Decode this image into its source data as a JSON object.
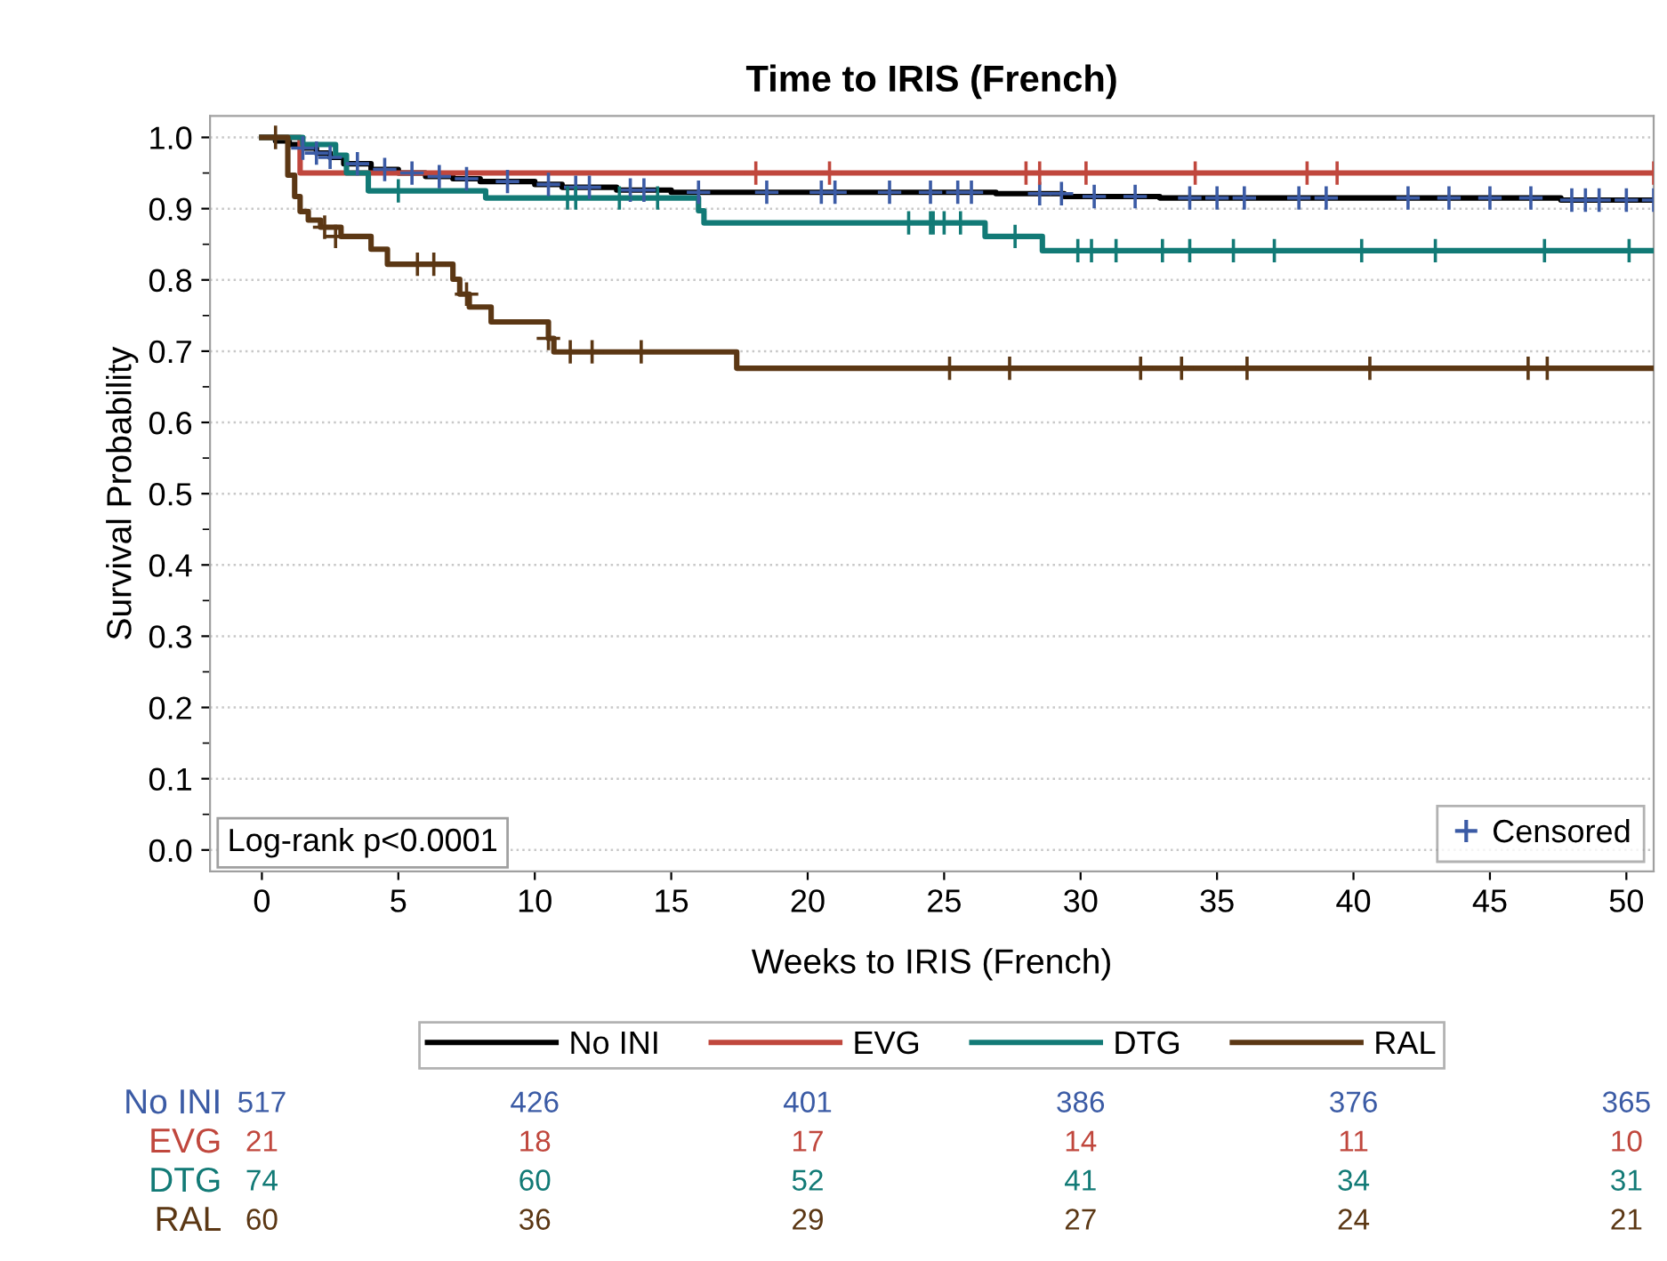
{
  "chart_data": {
    "type": "step",
    "title": "Time to IRIS (French)",
    "xlabel": "Weeks to IRIS (French)",
    "ylabel": "Survival Probability",
    "xlim": [
      -1.9,
      51
    ],
    "ylim": [
      -0.03,
      1.03
    ],
    "xticks": [
      0,
      5,
      10,
      15,
      20,
      25,
      30,
      35,
      40,
      45,
      50
    ],
    "yticks": [
      {
        "value": 0.0,
        "label": "0.0"
      },
      {
        "value": 0.05,
        "label": null
      },
      {
        "value": 0.1,
        "label": "0.1"
      },
      {
        "value": 0.15,
        "label": null
      },
      {
        "value": 0.2,
        "label": "0.2"
      },
      {
        "value": 0.25,
        "label": null
      },
      {
        "value": 0.3,
        "label": "0.3"
      },
      {
        "value": 0.35,
        "label": null
      },
      {
        "value": 0.4,
        "label": "0.4"
      },
      {
        "value": 0.45,
        "label": null
      },
      {
        "value": 0.5,
        "label": "0.5"
      },
      {
        "value": 0.55,
        "label": null
      },
      {
        "value": 0.6,
        "label": "0.6"
      },
      {
        "value": 0.65,
        "label": null
      },
      {
        "value": 0.7,
        "label": "0.7"
      },
      {
        "value": 0.75,
        "label": null
      },
      {
        "value": 0.8,
        "label": "0.8"
      },
      {
        "value": 0.85,
        "label": null
      },
      {
        "value": 0.9,
        "label": "0.9"
      },
      {
        "value": 0.95,
        "label": null
      },
      {
        "value": 1.0,
        "label": "1.0"
      }
    ],
    "grid": "y",
    "legend": "bottom",
    "series": [
      {
        "name": "No INI",
        "color": "#000000",
        "x": [
          0,
          0.5,
          1,
          1.5,
          2,
          2.5,
          3,
          4,
          5,
          6,
          7,
          8,
          10,
          11,
          13,
          15,
          26.9,
          29.4,
          32.9,
          47.6,
          51
        ],
        "values": [
          1,
          0.995,
          0.99,
          0.985,
          0.978,
          0.972,
          0.963,
          0.955,
          0.95,
          0.945,
          0.942,
          0.938,
          0.934,
          0.93,
          0.926,
          0.923,
          0.921,
          0.917,
          0.915,
          0.912,
          0.912
        ]
      },
      {
        "name": "EVG",
        "color": "#c0473d",
        "x": [
          0,
          1.4,
          51
        ],
        "values": [
          1,
          0.95,
          0.95
        ]
      },
      {
        "name": "DTG",
        "color": "#127a76",
        "x": [
          0,
          1.5,
          2.7,
          3.1,
          3.9,
          8.2,
          16.0,
          16.2,
          26.5,
          28.6,
          51
        ],
        "values": [
          1,
          0.99,
          0.975,
          0.95,
          0.925,
          0.915,
          0.897,
          0.88,
          0.861,
          0.841,
          0.841
        ]
      },
      {
        "name": "RAL",
        "color": "#5b3714",
        "x": [
          0,
          0.95,
          1.2,
          1.4,
          1.7,
          2.15,
          2.9,
          4.0,
          4.6,
          7.0,
          7.25,
          7.6,
          8.4,
          10.5,
          10.7,
          17.4,
          51
        ],
        "values": [
          1,
          0.947,
          0.917,
          0.896,
          0.884,
          0.874,
          0.861,
          0.843,
          0.822,
          0.801,
          0.78,
          0.762,
          0.741,
          0.718,
          0.699,
          0.676,
          0.676
        ]
      },
      {
        "name": "Censored",
        "type": "scatter",
        "marker": "cross",
        "color": "#3b5ba5",
        "x": [
          1.5,
          2,
          2.5,
          3.5,
          4.5,
          5.5,
          6.5,
          7.5,
          9,
          10.5,
          11.5,
          12,
          13.5,
          14,
          16,
          18.5,
          20.5,
          21,
          23,
          24.5,
          25.5,
          26,
          28.5,
          29.3,
          30.5,
          32,
          34,
          35,
          36,
          38,
          39,
          42,
          43.5,
          45,
          46.5,
          48,
          48.5,
          49,
          50,
          51,
          18.1,
          20.8,
          28.0,
          28.5,
          30.2,
          34.2,
          38.3,
          39.4,
          51,
          5.0,
          11.2,
          11.5,
          13.1,
          14.5,
          23.7,
          24.5,
          24.6,
          25.0,
          25.6,
          27.6,
          29.9,
          30.4,
          31.3,
          33.0,
          34.0,
          35.6,
          37.1,
          40.3,
          43.0,
          47.0,
          50.1,
          0.5,
          2.3,
          2.7,
          5.7,
          6.3,
          7.5,
          10.5,
          11.3,
          12.1,
          13.9,
          25.2,
          27.4,
          32.2,
          33.7,
          36.1,
          40.6,
          46.4,
          47.1
        ],
        "values": [
          0.985,
          0.978,
          0.972,
          0.963,
          0.955,
          0.95,
          0.945,
          0.942,
          0.938,
          0.934,
          0.93,
          0.93,
          0.926,
          0.926,
          0.923,
          0.923,
          0.923,
          0.923,
          0.923,
          0.923,
          0.923,
          0.923,
          0.921,
          0.921,
          0.917,
          0.917,
          0.915,
          0.915,
          0.915,
          0.915,
          0.915,
          0.915,
          0.915,
          0.915,
          0.915,
          0.912,
          0.912,
          0.912,
          0.912,
          0.912,
          0.95,
          0.95,
          0.95,
          0.95,
          0.95,
          0.95,
          0.95,
          0.95,
          0.95,
          0.925,
          0.915,
          0.915,
          0.915,
          0.915,
          0.88,
          0.88,
          0.88,
          0.88,
          0.88,
          0.861,
          0.841,
          0.841,
          0.841,
          0.841,
          0.841,
          0.841,
          0.841,
          0.841,
          0.841,
          0.841,
          0.841,
          1.0,
          0.874,
          0.861,
          0.822,
          0.822,
          0.78,
          0.718,
          0.699,
          0.699,
          0.699,
          0.676,
          0.676,
          0.676,
          0.676,
          0.676,
          0.676,
          0.676,
          0.676
        ],
        "colors": [
          "#3b5ba5",
          "#3b5ba5",
          "#3b5ba5",
          "#3b5ba5",
          "#3b5ba5",
          "#3b5ba5",
          "#3b5ba5",
          "#3b5ba5",
          "#3b5ba5",
          "#3b5ba5",
          "#3b5ba5",
          "#3b5ba5",
          "#3b5ba5",
          "#3b5ba5",
          "#3b5ba5",
          "#3b5ba5",
          "#3b5ba5",
          "#3b5ba5",
          "#3b5ba5",
          "#3b5ba5",
          "#3b5ba5",
          "#3b5ba5",
          "#3b5ba5",
          "#3b5ba5",
          "#3b5ba5",
          "#3b5ba5",
          "#3b5ba5",
          "#3b5ba5",
          "#3b5ba5",
          "#3b5ba5",
          "#3b5ba5",
          "#3b5ba5",
          "#3b5ba5",
          "#3b5ba5",
          "#3b5ba5",
          "#3b5ba5",
          "#3b5ba5",
          "#3b5ba5",
          "#3b5ba5",
          "#3b5ba5",
          "#c0473d",
          "#c0473d",
          "#c0473d",
          "#c0473d",
          "#c0473d",
          "#c0473d",
          "#c0473d",
          "#c0473d",
          "#c0473d",
          "#127a76",
          "#127a76",
          "#127a76",
          "#127a76",
          "#127a76",
          "#127a76",
          "#127a76",
          "#127a76",
          "#127a76",
          "#127a76",
          "#127a76",
          "#127a76",
          "#127a76",
          "#127a76",
          "#127a76",
          "#127a76",
          "#127a76",
          "#127a76",
          "#127a76",
          "#127a76",
          "#127a76",
          "#127a76",
          "#5b3714",
          "#5b3714",
          "#5b3714",
          "#5b3714",
          "#5b3714",
          "#5b3714",
          "#5b3714",
          "#5b3714",
          "#5b3714",
          "#5b3714",
          "#5b3714",
          "#5b3714",
          "#5b3714",
          "#5b3714",
          "#5b3714",
          "#5b3714",
          "#5b3714",
          "#5b3714"
        ]
      }
    ],
    "annotations": [
      "Log-rank p<0.0001",
      "No INI",
      "517",
      "426",
      "401",
      "386",
      "376",
      "365",
      "EVG",
      "21",
      "18",
      "17",
      "14",
      "11",
      "10",
      "DTG",
      "74",
      "60",
      "52",
      "41",
      "34",
      "31",
      "RAL",
      "60",
      "36",
      "29",
      "27",
      "24",
      "21"
    ]
  }
}
